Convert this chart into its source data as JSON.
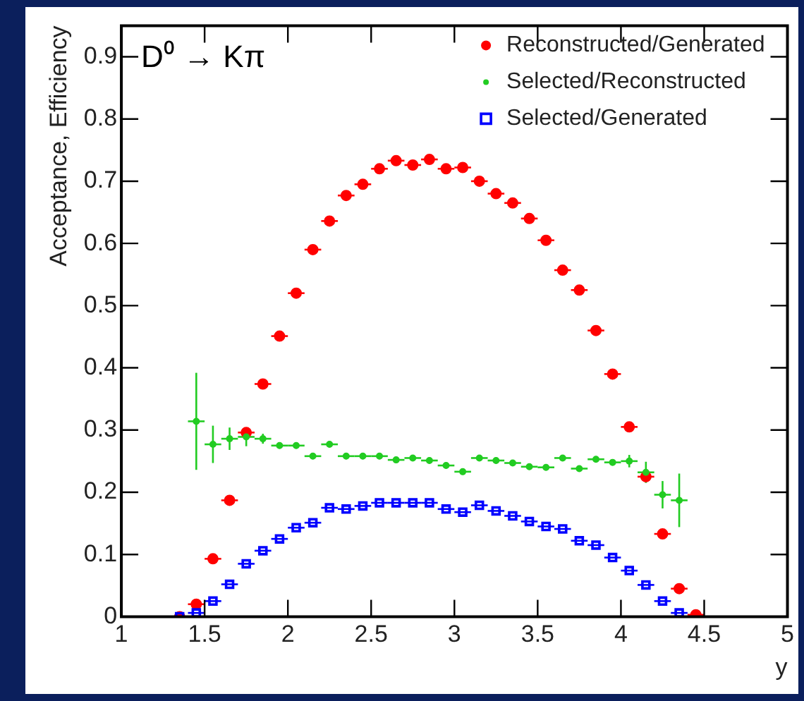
{
  "chart_data": {
    "type": "scatter",
    "xlabel": "y",
    "ylabel": "Acceptance, Efficiency",
    "annotations": [
      "D⁰ → Kπ"
    ],
    "x": [
      1.35,
      1.45,
      1.55,
      1.65,
      1.75,
      1.85,
      1.95,
      2.05,
      2.15,
      2.25,
      2.35,
      2.45,
      2.55,
      2.65,
      2.75,
      2.85,
      2.95,
      3.05,
      3.15,
      3.25,
      3.35,
      3.45,
      3.55,
      3.65,
      3.75,
      3.85,
      3.95,
      4.05,
      4.15,
      4.25,
      4.35,
      4.45
    ],
    "series": [
      {
        "name": "Reconstructed/Generated",
        "color": "#ff0000",
        "marker": "circle",
        "values": [
          0.0,
          0.02,
          0.093,
          0.187,
          0.296,
          0.374,
          0.451,
          0.52,
          0.59,
          0.636,
          0.677,
          0.695,
          0.72,
          0.733,
          0.726,
          0.735,
          0.72,
          0.722,
          0.7,
          0.68,
          0.665,
          0.64,
          0.605,
          0.557,
          0.525,
          0.46,
          0.39,
          0.305,
          0.225,
          0.133,
          0.045,
          0.003
        ],
        "xerrors": [
          null,
          0.05,
          0.05,
          0.05,
          0.05,
          0.05,
          0.05,
          0.05,
          0.05,
          0.05,
          0.05,
          0.05,
          0.05,
          0.05,
          0.05,
          0.05,
          0.05,
          0.05,
          0.05,
          0.05,
          0.05,
          0.05,
          0.05,
          0.05,
          0.05,
          0.05,
          0.05,
          0.05,
          0.05,
          0.05,
          0.05,
          0.05
        ]
      },
      {
        "name": "Selected/Reconstructed",
        "color": "#22cc22",
        "marker": "circle",
        "values": [
          null,
          0.314,
          0.277,
          0.286,
          0.289,
          0.286,
          0.275,
          0.275,
          0.258,
          0.277,
          0.258,
          0.258,
          0.258,
          0.252,
          0.255,
          0.251,
          0.243,
          0.233,
          0.255,
          0.251,
          0.247,
          0.241,
          0.24,
          0.255,
          0.238,
          0.253,
          0.248,
          0.25,
          0.232,
          0.196,
          0.187,
          null
        ],
        "errors": [
          null,
          0.078,
          0.03,
          0.018,
          0.015,
          0.008,
          0.005,
          0.005,
          0.005,
          0.005,
          0.005,
          0.005,
          0.005,
          0.005,
          0.005,
          0.005,
          0.005,
          0.005,
          0.005,
          0.005,
          0.005,
          0.005,
          0.005,
          0.005,
          0.005,
          0.005,
          0.005,
          0.01,
          0.017,
          0.022,
          0.043,
          null
        ],
        "xerrors": [
          null,
          0.05,
          0.05,
          0.05,
          0.05,
          0.05,
          0.05,
          0.05,
          0.05,
          0.05,
          0.05,
          0.05,
          0.05,
          0.05,
          0.05,
          0.05,
          0.05,
          0.05,
          0.05,
          0.05,
          0.05,
          0.05,
          0.05,
          0.05,
          0.05,
          0.05,
          0.05,
          0.05,
          0.05,
          0.05,
          0.05,
          null
        ]
      },
      {
        "name": "Selected/Generated",
        "color": "#0000ff",
        "marker": "square",
        "values": [
          0.0,
          0.006,
          0.025,
          0.052,
          0.085,
          0.106,
          0.125,
          0.143,
          0.151,
          0.175,
          0.173,
          0.178,
          0.183,
          0.183,
          0.183,
          0.183,
          0.173,
          0.168,
          0.179,
          0.17,
          0.162,
          0.153,
          0.145,
          0.141,
          0.122,
          0.115,
          0.095,
          0.074,
          0.051,
          0.025,
          0.006,
          null
        ],
        "xerrors": [
          null,
          0.05,
          0.05,
          0.05,
          0.05,
          0.05,
          0.05,
          0.05,
          0.05,
          0.05,
          0.05,
          0.05,
          0.05,
          0.05,
          0.05,
          0.05,
          0.05,
          0.05,
          0.05,
          0.05,
          0.05,
          0.05,
          0.05,
          0.05,
          0.05,
          0.05,
          0.05,
          0.05,
          0.05,
          0.05,
          0.05,
          null
        ]
      }
    ],
    "xlim": [
      1,
      5
    ],
    "xticks": [
      1,
      1.5,
      2,
      2.5,
      3,
      3.5,
      4,
      4.5,
      5
    ],
    "ylim": [
      0,
      0.95
    ],
    "yticks": [
      0,
      0.1,
      0.2,
      0.3,
      0.4,
      0.5,
      0.6,
      0.7,
      0.8,
      0.9
    ],
    "grid": false,
    "legend": "top right"
  }
}
